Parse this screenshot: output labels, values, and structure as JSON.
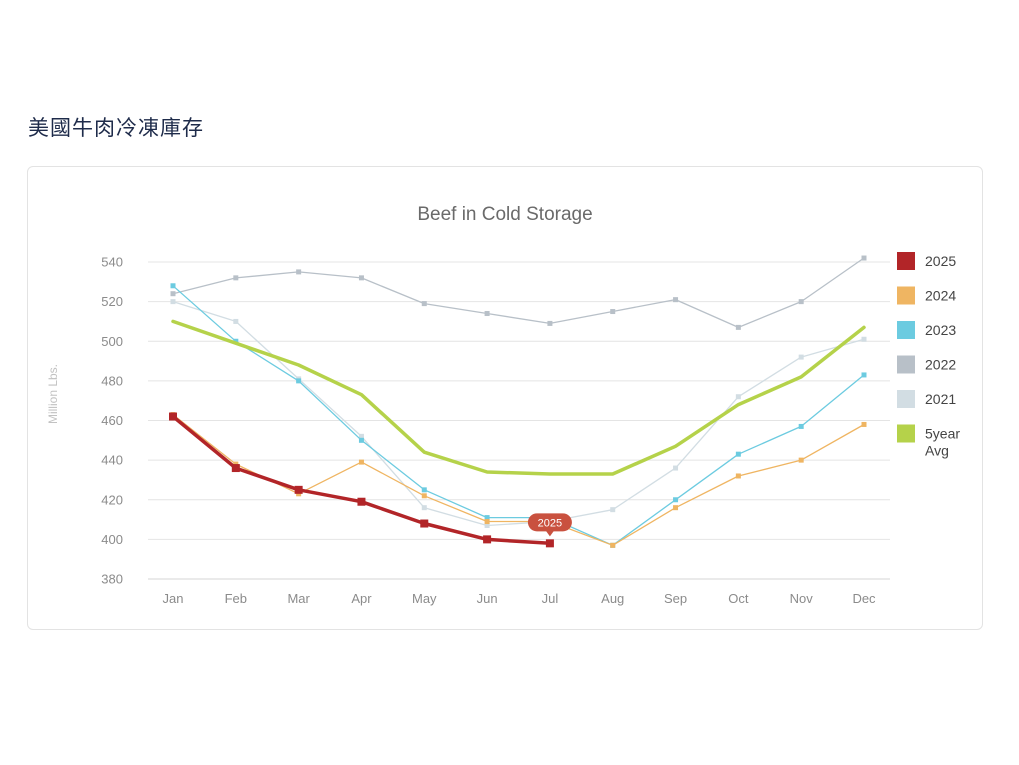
{
  "page": {
    "heading": "美國牛肉冷凍庫存"
  },
  "chart_data": {
    "type": "line",
    "title": "Beef in Cold Storage",
    "ylabel": "Million Lbs.",
    "xlabel": "",
    "categories": [
      "Jan",
      "Feb",
      "Mar",
      "Apr",
      "May",
      "Jun",
      "Jul",
      "Aug",
      "Sep",
      "Oct",
      "Nov",
      "Dec"
    ],
    "ylim": [
      380,
      540
    ],
    "yticks": [
      380,
      400,
      420,
      440,
      460,
      480,
      500,
      520,
      540
    ],
    "grid": true,
    "legend_position": "right",
    "series": [
      {
        "name": "2022",
        "color": "#b8c0c8",
        "width": 1.3,
        "marker": 2.5,
        "values": [
          524,
          532,
          535,
          532,
          519,
          514,
          509,
          515,
          521,
          507,
          520,
          542
        ]
      },
      {
        "name": "2021",
        "color": "#d2dde3",
        "width": 1.3,
        "marker": 2.5,
        "values": [
          520,
          510,
          481,
          452,
          416,
          407,
          409,
          415,
          436,
          472,
          492,
          501
        ]
      },
      {
        "name": "2023",
        "color": "#6ccbe0",
        "width": 1.3,
        "marker": 2.5,
        "values": [
          528,
          500,
          480,
          450,
          425,
          411,
          411,
          397,
          420,
          443,
          457,
          483
        ]
      },
      {
        "name": "2024",
        "color": "#efb562",
        "width": 1.3,
        "marker": 2.5,
        "values": [
          463,
          438,
          423,
          439,
          422,
          409,
          409,
          397,
          416,
          432,
          440,
          458
        ]
      },
      {
        "name": "5year Avg",
        "color": "#b5d24a",
        "width": 3.5,
        "marker": 0,
        "values": [
          510,
          499,
          488,
          473,
          444,
          434,
          433,
          433,
          447,
          468,
          482,
          507
        ]
      },
      {
        "name": "2025",
        "color": "#b22528",
        "width": 3.5,
        "marker": 4,
        "values": [
          462,
          436,
          425,
          419,
          408,
          400,
          398,
          null,
          null,
          null,
          null,
          null
        ]
      }
    ],
    "legend_order": [
      "2025",
      "2024",
      "2023",
      "2022",
      "2021",
      "5year Avg"
    ],
    "legend_lines": {
      "2025": [
        "2025"
      ],
      "2024": [
        "2024"
      ],
      "2023": [
        "2023"
      ],
      "2022": [
        "2022"
      ],
      "2021": [
        "2021"
      ],
      "5year Avg": [
        "5year",
        "Avg"
      ]
    },
    "tooltip": {
      "series": "2025",
      "index": 6,
      "label": "2025",
      "color": "#c9513f"
    }
  }
}
